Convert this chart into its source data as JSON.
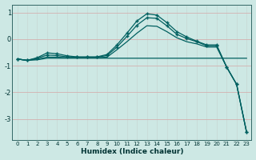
{
  "xlabel": "Humidex (Indice chaleur)",
  "ylabel": "",
  "background_color": "#cde8e4",
  "grid_color": "#b0d4ce",
  "line_color": "#006060",
  "xlim": [
    -0.5,
    23.5
  ],
  "ylim": [
    -3.8,
    1.3
  ],
  "yticks": [
    1,
    0,
    -1,
    -2,
    -3
  ],
  "xticks": [
    0,
    1,
    2,
    3,
    4,
    5,
    6,
    7,
    8,
    9,
    10,
    11,
    12,
    13,
    14,
    15,
    16,
    17,
    18,
    19,
    20,
    21,
    22,
    23
  ],
  "series": [
    {
      "x": [
        0,
        1,
        2,
        3,
        4,
        5,
        6,
        7,
        8,
        9,
        10,
        11,
        12,
        13,
        14,
        15,
        16,
        17,
        18,
        19,
        20,
        21,
        22,
        23
      ],
      "y": [
        -0.75,
        -0.8,
        -0.78,
        -0.72,
        -0.72,
        -0.72,
        -0.72,
        -0.72,
        -0.72,
        -0.72,
        -0.72,
        -0.72,
        -0.72,
        -0.72,
        -0.72,
        -0.72,
        -0.72,
        -0.72,
        -0.72,
        -0.72,
        -0.72,
        -0.72,
        -0.72,
        -0.72
      ],
      "has_markers": false
    },
    {
      "x": [
        0,
        1,
        2,
        3,
        4,
        5,
        6,
        7,
        8,
        9,
        10,
        11,
        12,
        13,
        14,
        15,
        16,
        17,
        18,
        19,
        20,
        21,
        22,
        23
      ],
      "y": [
        -0.75,
        -0.8,
        -0.75,
        -0.68,
        -0.68,
        -0.7,
        -0.7,
        -0.7,
        -0.7,
        -0.68,
        -0.4,
        -0.1,
        0.22,
        0.5,
        0.48,
        0.28,
        0.05,
        -0.1,
        -0.18,
        -0.3,
        -0.3,
        -1.05,
        -1.7,
        -3.5
      ],
      "has_markers": false
    },
    {
      "x": [
        0,
        1,
        2,
        3,
        4,
        5,
        6,
        7,
        8,
        9,
        10,
        11,
        12,
        13,
        14,
        15,
        16,
        17,
        18,
        19,
        20,
        21,
        22,
        23
      ],
      "y": [
        -0.75,
        -0.8,
        -0.72,
        -0.6,
        -0.62,
        -0.67,
        -0.68,
        -0.68,
        -0.68,
        -0.62,
        -0.3,
        0.1,
        0.52,
        0.8,
        0.78,
        0.5,
        0.18,
        0.02,
        -0.1,
        -0.25,
        -0.25,
        -1.05,
        -1.7,
        -3.5
      ],
      "has_markers": true
    },
    {
      "x": [
        0,
        1,
        2,
        3,
        4,
        5,
        6,
        7,
        8,
        9,
        10,
        11,
        12,
        13,
        14,
        15,
        16,
        17,
        18,
        19,
        20,
        21,
        22,
        23
      ],
      "y": [
        -0.75,
        -0.8,
        -0.7,
        -0.52,
        -0.55,
        -0.63,
        -0.67,
        -0.67,
        -0.67,
        -0.58,
        -0.22,
        0.22,
        0.68,
        0.95,
        0.9,
        0.62,
        0.28,
        0.08,
        -0.08,
        -0.22,
        -0.22,
        -1.05,
        -1.7,
        -3.5
      ],
      "has_markers": true
    }
  ]
}
